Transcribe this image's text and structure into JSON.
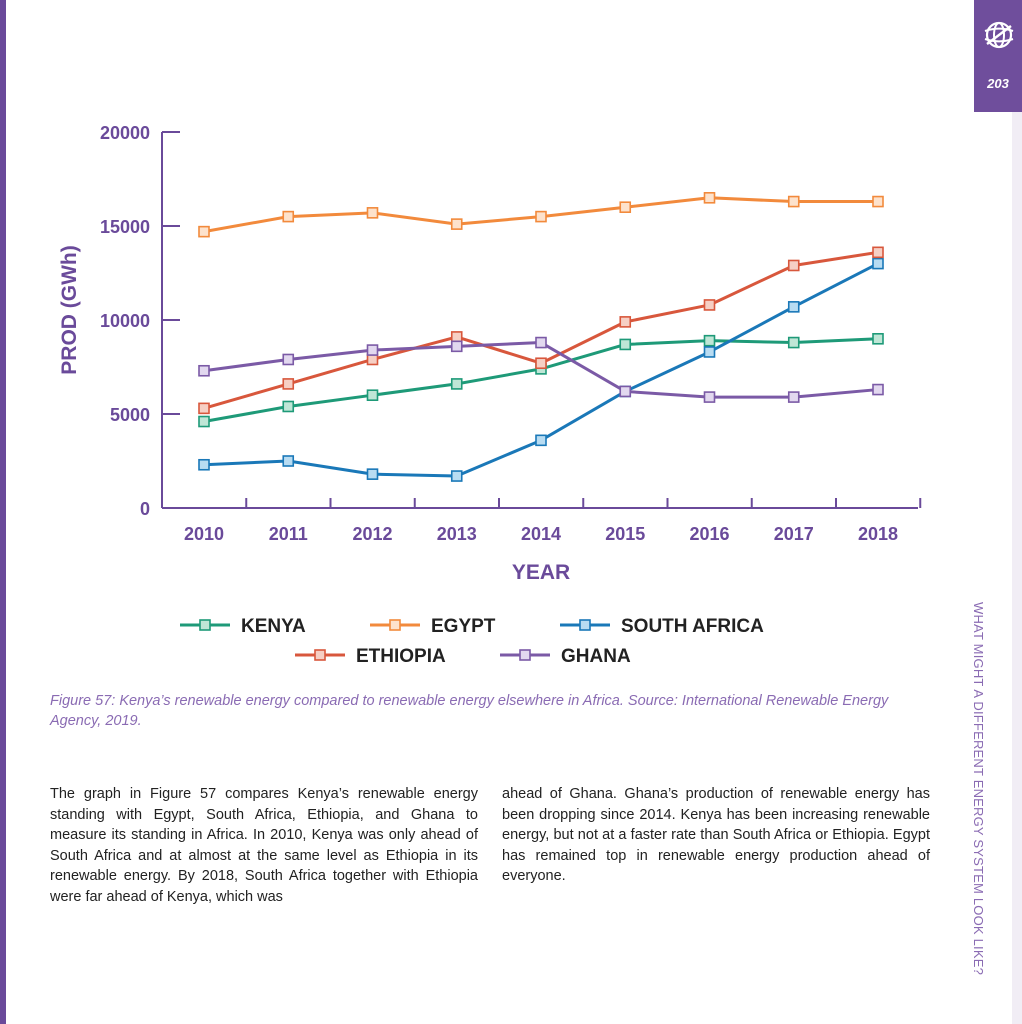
{
  "page": {
    "number": "203",
    "side_title": "WHAT MIGHT A DIFFERENT ENERGY SYSTEM LOOK LIKE?",
    "accent_color": "#6f4e9c"
  },
  "figure": {
    "caption": "Figure 57: Kenya’s renewable energy compared to renewable energy elsewhere in Africa. Source: International Renewable Energy Agency, 2019."
  },
  "chart_data": {
    "type": "line",
    "title": "",
    "xlabel": "YEAR",
    "ylabel": "PROD (GWh)",
    "ylim": [
      0,
      20000
    ],
    "yticks": [
      0,
      5000,
      10000,
      15000,
      20000
    ],
    "x": [
      2010,
      2011,
      2012,
      2013,
      2014,
      2015,
      2016,
      2017,
      2018
    ],
    "grid": false,
    "legend_position": "bottom",
    "series": [
      {
        "name": "KENYA",
        "color": "#1e9a78",
        "marker_fill": "#bfe6d6",
        "values": [
          4600,
          5400,
          6000,
          6600,
          7400,
          8700,
          8900,
          8800,
          9000
        ]
      },
      {
        "name": "EGYPT",
        "color": "#f28a3c",
        "marker_fill": "#fde2cc",
        "values": [
          14700,
          15500,
          15700,
          15100,
          15500,
          16000,
          16500,
          16300,
          16300
        ]
      },
      {
        "name": "SOUTH AFRICA",
        "color": "#1a78b8",
        "marker_fill": "#b8dcf2",
        "values": [
          2300,
          2500,
          1800,
          1700,
          3600,
          6200,
          8300,
          10700,
          13000
        ]
      },
      {
        "name": "ETHIOPIA",
        "color": "#d8573c",
        "marker_fill": "#f6cfc4",
        "values": [
          5300,
          6600,
          7900,
          9100,
          7700,
          9900,
          10800,
          12900,
          13600
        ]
      },
      {
        "name": "GHANA",
        "color": "#7b5aa6",
        "marker_fill": "#e2d8ef",
        "values": [
          7300,
          7900,
          8400,
          8600,
          8800,
          6200,
          5900,
          5900,
          6300
        ]
      }
    ]
  },
  "body": {
    "col1": "The graph in Figure 57 compares Kenya’s renewable energy standing with Egypt, South Africa, Ethiopia, and Ghana to measure its standing in Africa. In 2010, Kenya was only ahead of South Africa and at almost at the same level as Ethiopia in its renewable energy. By 2018, South Africa together with Ethiopia were far ahead of Kenya, which was",
    "col2": "ahead of Ghana.  Ghana’s production of renewable energy has been dropping since 2014.  Kenya has been increasing renewable energy, but not at a faster rate than South Africa or Ethiopia.  Egypt has remained top in renewable energy production ahead of everyone."
  }
}
